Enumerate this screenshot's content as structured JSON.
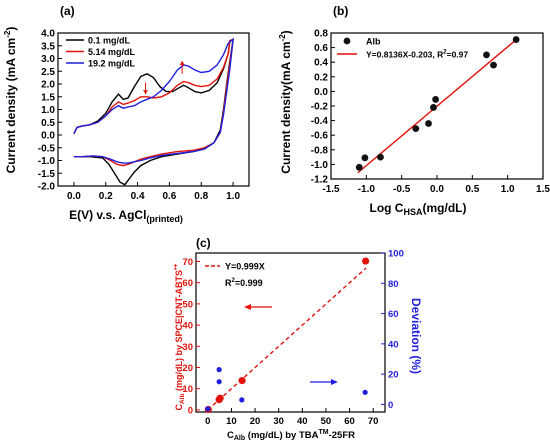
{
  "colors": {
    "black": "#000000",
    "red": "#e3120b",
    "blue": "#1f1fdd",
    "fit_red": "#e3120b",
    "deviation_blue": "#1f1fdd"
  },
  "chart_data": [
    {
      "id": "a",
      "panel_label": "(a)",
      "type": "line",
      "xlabel_main": "E(V) v.s. AgCl",
      "xlabel_sub": "(printed)",
      "ylabel_main": "Current density (mA cm",
      "ylabel_sup": "-2",
      "ylabel_end": ")",
      "xlim": [
        -0.1,
        1.1
      ],
      "ylim": [
        -2.0,
        4.0
      ],
      "xticks": [
        {
          "v": 0.0,
          "label": "0.0"
        },
        {
          "v": 0.2,
          "label": "0.2"
        },
        {
          "v": 0.4,
          "label": "0.4"
        },
        {
          "v": 0.6,
          "label": "0.6"
        },
        {
          "v": 0.8,
          "label": "0.8"
        },
        {
          "v": 1.0,
          "label": "1.0"
        }
      ],
      "yticks": [
        {
          "v": -2.0,
          "label": "-2.0"
        },
        {
          "v": -1.5,
          "label": "-1.5"
        },
        {
          "v": -1.0,
          "label": "-1.0"
        },
        {
          "v": -0.5,
          "label": "-0.5"
        },
        {
          "v": 0.0,
          "label": "0.0"
        },
        {
          "v": 0.5,
          "label": "0.5"
        },
        {
          "v": 1.0,
          "label": "1.0"
        },
        {
          "v": 1.5,
          "label": "1.5"
        },
        {
          "v": 2.0,
          "label": "2.0"
        },
        {
          "v": 2.5,
          "label": "2.5"
        },
        {
          "v": 3.0,
          "label": "3.0"
        },
        {
          "v": 3.5,
          "label": "3.5"
        },
        {
          "v": 4.0,
          "label": "4.0"
        }
      ],
      "legend_position": "top-left",
      "series": [
        {
          "name": "0.1 mg/dL",
          "color": "#000000",
          "forward": [
            [
              0.0,
              0.05
            ],
            [
              0.02,
              0.3
            ],
            [
              0.05,
              0.35
            ],
            [
              0.1,
              0.4
            ],
            [
              0.15,
              0.55
            ],
            [
              0.2,
              0.85
            ],
            [
              0.24,
              1.3
            ],
            [
              0.28,
              1.6
            ],
            [
              0.31,
              1.4
            ],
            [
              0.34,
              1.45
            ],
            [
              0.38,
              1.9
            ],
            [
              0.42,
              2.3
            ],
            [
              0.46,
              2.4
            ],
            [
              0.5,
              2.25
            ],
            [
              0.54,
              1.9
            ],
            [
              0.58,
              1.7
            ],
            [
              0.62,
              1.7
            ],
            [
              0.66,
              1.85
            ],
            [
              0.69,
              1.95
            ],
            [
              0.72,
              1.85
            ],
            [
              0.76,
              1.7
            ],
            [
              0.8,
              1.65
            ],
            [
              0.85,
              1.75
            ],
            [
              0.9,
              2.05
            ],
            [
              0.94,
              2.6
            ],
            [
              0.97,
              3.2
            ],
            [
              0.98,
              3.7
            ],
            [
              1.0,
              3.75
            ]
          ],
          "reverse": [
            [
              1.0,
              3.75
            ],
            [
              0.98,
              2.9
            ],
            [
              0.96,
              2.0
            ],
            [
              0.94,
              1.0
            ],
            [
              0.92,
              0.2
            ],
            [
              0.88,
              -0.3
            ],
            [
              0.82,
              -0.55
            ],
            [
              0.75,
              -0.65
            ],
            [
              0.65,
              -0.75
            ],
            [
              0.55,
              -0.85
            ],
            [
              0.48,
              -1.0
            ],
            [
              0.42,
              -1.2
            ],
            [
              0.38,
              -1.45
            ],
            [
              0.35,
              -1.7
            ],
            [
              0.32,
              -1.95
            ],
            [
              0.29,
              -1.85
            ],
            [
              0.26,
              -1.55
            ],
            [
              0.22,
              -1.15
            ],
            [
              0.18,
              -0.9
            ],
            [
              0.1,
              -0.85
            ],
            [
              0.05,
              -0.85
            ],
            [
              0.0,
              -0.85
            ]
          ]
        },
        {
          "name": "5.14 mg/dL",
          "color": "#e3120b",
          "forward": [
            [
              0.0,
              0.05
            ],
            [
              0.02,
              0.3
            ],
            [
              0.05,
              0.35
            ],
            [
              0.1,
              0.4
            ],
            [
              0.15,
              0.5
            ],
            [
              0.2,
              0.75
            ],
            [
              0.24,
              1.1
            ],
            [
              0.28,
              1.3
            ],
            [
              0.31,
              1.2
            ],
            [
              0.34,
              1.25
            ],
            [
              0.38,
              1.35
            ],
            [
              0.42,
              1.5
            ],
            [
              0.46,
              1.5
            ],
            [
              0.5,
              1.45
            ],
            [
              0.55,
              1.5
            ],
            [
              0.6,
              1.65
            ],
            [
              0.65,
              1.95
            ],
            [
              0.69,
              2.1
            ],
            [
              0.72,
              2.05
            ],
            [
              0.76,
              1.95
            ],
            [
              0.8,
              1.9
            ],
            [
              0.85,
              1.95
            ],
            [
              0.9,
              2.2
            ],
            [
              0.94,
              2.65
            ],
            [
              0.97,
              3.2
            ],
            [
              0.98,
              3.7
            ],
            [
              1.0,
              3.75
            ]
          ],
          "reverse": [
            [
              1.0,
              3.75
            ],
            [
              0.98,
              2.8
            ],
            [
              0.96,
              1.9
            ],
            [
              0.94,
              0.9
            ],
            [
              0.92,
              0.1
            ],
            [
              0.88,
              -0.3
            ],
            [
              0.82,
              -0.5
            ],
            [
              0.75,
              -0.6
            ],
            [
              0.65,
              -0.65
            ],
            [
              0.55,
              -0.75
            ],
            [
              0.48,
              -0.85
            ],
            [
              0.42,
              -0.95
            ],
            [
              0.38,
              -1.05
            ],
            [
              0.34,
              -1.15
            ],
            [
              0.31,
              -1.2
            ],
            [
              0.27,
              -1.15
            ],
            [
              0.23,
              -1.0
            ],
            [
              0.18,
              -0.85
            ],
            [
              0.12,
              -0.82
            ],
            [
              0.05,
              -0.85
            ],
            [
              0.0,
              -0.85
            ]
          ]
        },
        {
          "name": "19.2 mg/dL",
          "color": "#1f1fdd",
          "forward": [
            [
              0.0,
              0.05
            ],
            [
              0.02,
              0.3
            ],
            [
              0.05,
              0.35
            ],
            [
              0.1,
              0.4
            ],
            [
              0.15,
              0.5
            ],
            [
              0.2,
              0.75
            ],
            [
              0.24,
              1.0
            ],
            [
              0.28,
              1.15
            ],
            [
              0.31,
              1.05
            ],
            [
              0.34,
              1.1
            ],
            [
              0.38,
              1.15
            ],
            [
              0.42,
              1.3
            ],
            [
              0.46,
              1.4
            ],
            [
              0.5,
              1.5
            ],
            [
              0.55,
              1.75
            ],
            [
              0.6,
              2.1
            ],
            [
              0.65,
              2.55
            ],
            [
              0.69,
              2.75
            ],
            [
              0.72,
              2.7
            ],
            [
              0.76,
              2.55
            ],
            [
              0.8,
              2.45
            ],
            [
              0.85,
              2.5
            ],
            [
              0.9,
              2.75
            ],
            [
              0.94,
              3.15
            ],
            [
              0.97,
              3.6
            ],
            [
              1.0,
              3.75
            ]
          ],
          "reverse": [
            [
              1.0,
              3.75
            ],
            [
              0.98,
              2.6
            ],
            [
              0.96,
              1.7
            ],
            [
              0.94,
              0.8
            ],
            [
              0.92,
              0.1
            ],
            [
              0.88,
              -0.3
            ],
            [
              0.82,
              -0.55
            ],
            [
              0.75,
              -0.65
            ],
            [
              0.65,
              -0.72
            ],
            [
              0.55,
              -0.8
            ],
            [
              0.48,
              -0.9
            ],
            [
              0.42,
              -1.0
            ],
            [
              0.38,
              -1.05
            ],
            [
              0.34,
              -1.1
            ],
            [
              0.31,
              -1.1
            ],
            [
              0.27,
              -1.05
            ],
            [
              0.23,
              -0.95
            ],
            [
              0.18,
              -0.85
            ],
            [
              0.12,
              -0.82
            ],
            [
              0.05,
              -0.85
            ],
            [
              0.0,
              -0.85
            ]
          ]
        }
      ],
      "arrows": [
        {
          "x": 0.45,
          "y_from": 2.05,
          "y_to": 1.6
        },
        {
          "x": 0.68,
          "y_from": 2.4,
          "y_to": 2.9
        }
      ]
    },
    {
      "id": "b",
      "panel_label": "(b)",
      "type": "scatter",
      "xlabel_main": "Log C",
      "xlabel_sub": "HSA",
      "xlabel_end": "(mg/dL)",
      "ylabel": "Current density(mA cm",
      "ylabel_sup": "-2",
      "ylabel_end": ")",
      "xlim": [
        -1.5,
        1.5
      ],
      "ylim": [
        -1.2,
        0.8
      ],
      "xticks": [
        {
          "v": -1.5,
          "label": "-1.5"
        },
        {
          "v": -1.0,
          "label": "-1.0"
        },
        {
          "v": -0.5,
          "label": "-0.5"
        },
        {
          "v": 0.0,
          "label": "0.0"
        },
        {
          "v": 0.5,
          "label": "0.5"
        },
        {
          "v": 1.0,
          "label": "1.0"
        },
        {
          "v": 1.5,
          "label": "1.5"
        }
      ],
      "yticks": [
        {
          "v": -1.2,
          "label": "-1.2"
        },
        {
          "v": -1.0,
          "label": "-1.0"
        },
        {
          "v": -0.8,
          "label": "-0.8"
        },
        {
          "v": -0.6,
          "label": "-0.6"
        },
        {
          "v": -0.4,
          "label": "-0.4"
        },
        {
          "v": -0.2,
          "label": "-0.2"
        },
        {
          "v": 0.0,
          "label": "0.0"
        },
        {
          "v": 0.2,
          "label": "0.2"
        },
        {
          "v": 0.4,
          "label": "0.4"
        },
        {
          "v": 0.6,
          "label": "0.6"
        },
        {
          "v": 0.8,
          "label": "0.8"
        }
      ],
      "legend_position": "top-left",
      "points_name": "Alb",
      "points": [
        [
          -1.1,
          -1.04
        ],
        [
          -1.02,
          -0.91
        ],
        [
          -0.8,
          -0.9
        ],
        [
          -0.3,
          -0.51
        ],
        [
          -0.12,
          -0.44
        ],
        [
          -0.05,
          -0.22
        ],
        [
          -0.02,
          -0.11
        ],
        [
          0.7,
          0.5
        ],
        [
          0.8,
          0.36
        ],
        [
          1.12,
          0.71
        ]
      ],
      "fit_label": "Y=0.8136X-0.203, R",
      "fit_label_sup": "2",
      "fit_label_end": "=0.97",
      "fit": {
        "slope": 0.8136,
        "intercept": -0.203,
        "x_range": [
          -1.12,
          1.15
        ]
      }
    },
    {
      "id": "c",
      "panel_label": "(c)",
      "type": "scatter",
      "xlabel_a": "C",
      "xlabel_sub": "Alb",
      "xlabel_b": " (mg/dL) by TBA",
      "xlabel_sup": "TM",
      "xlabel_c": "-25FR",
      "ylabel_left_a": "C",
      "ylabel_left_sub": "Alb",
      "ylabel_left_b": " (mg/dL) by SPCE|CNT-ABTS",
      "ylabel_left_sup": "•+",
      "ylabel_right": "Deviation (%)",
      "xlim": [
        -5,
        75
      ],
      "ylim_left": [
        -1,
        74
      ],
      "ylim_right": [
        -5,
        100
      ],
      "xticks": [
        {
          "v": 0,
          "label": "0"
        },
        {
          "v": 10,
          "label": "10"
        },
        {
          "v": 20,
          "label": "20"
        },
        {
          "v": 30,
          "label": "30"
        },
        {
          "v": 40,
          "label": "40"
        },
        {
          "v": 50,
          "label": "50"
        },
        {
          "v": 60,
          "label": "60"
        },
        {
          "v": 70,
          "label": "70"
        }
      ],
      "yticks_left": [
        {
          "v": 0,
          "label": "0"
        },
        {
          "v": 10,
          "label": "10"
        },
        {
          "v": 20,
          "label": "20"
        },
        {
          "v": 30,
          "label": "30"
        },
        {
          "v": 40,
          "label": "40"
        },
        {
          "v": 50,
          "label": "50"
        },
        {
          "v": 60,
          "label": "60"
        },
        {
          "v": 70,
          "label": "70"
        }
      ],
      "yticks_right": [
        {
          "v": 0,
          "label": "0"
        },
        {
          "v": 20,
          "label": "20"
        },
        {
          "v": 40,
          "label": "40"
        },
        {
          "v": 60,
          "label": "60"
        },
        {
          "v": 80,
          "label": "80"
        },
        {
          "v": 100,
          "label": "100"
        }
      ],
      "fit_label": "Y=0.999X",
      "r2_label_a": "R",
      "r2_label_sup": "2",
      "r2_label_b": "=0.999",
      "fit": {
        "slope": 0.999,
        "x_range": [
          0,
          67
        ]
      },
      "red_points": [
        [
          0.2,
          0.2
        ],
        [
          4.8,
          4.8
        ],
        [
          5.2,
          5.5
        ],
        [
          14.5,
          13.8
        ],
        [
          66.8,
          70.2
        ]
      ],
      "blue_points": [
        [
          0,
          -3
        ],
        [
          4.8,
          23
        ],
        [
          4.8,
          15
        ],
        [
          14.4,
          3
        ],
        [
          66.6,
          8
        ]
      ]
    }
  ]
}
